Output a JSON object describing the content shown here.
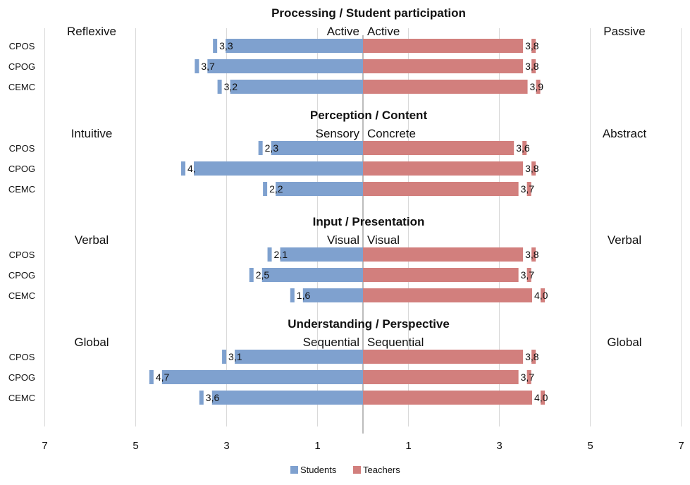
{
  "chart_data": {
    "type": "bar",
    "orientation": "horizontal-diverging",
    "x_ticks": [
      "7",
      "5",
      "3",
      "1",
      "1",
      "3",
      "5",
      "7"
    ],
    "xlim": [
      -7,
      7
    ],
    "grid": true,
    "legend_position": "bottom-center",
    "legend": [
      {
        "name": "Students",
        "color": "#7fa1cf"
      },
      {
        "name": "Teachers",
        "color": "#d27f7d"
      }
    ],
    "panels": [
      {
        "title": "Processing / Student participation",
        "left_pole": "Reflexive",
        "center_left": "Active",
        "center_right": "Active",
        "right_pole": "Passive",
        "categories": [
          "CPOS",
          "CPOG",
          "CEMC"
        ],
        "students": [
          3.3,
          3.7,
          3.2
        ],
        "teachers": [
          3.8,
          3.8,
          3.9
        ],
        "students_labels": [
          "3,3",
          "3,7",
          "3,2"
        ],
        "teachers_labels": [
          "3,8",
          "3,8",
          "3,9"
        ]
      },
      {
        "title": "Perception / Content",
        "left_pole": "Intuitive",
        "center_left": "Sensory",
        "center_right": "Concrete",
        "right_pole": "Abstract",
        "categories": [
          "CPOS",
          "CPOG",
          "CEMC"
        ],
        "students": [
          2.3,
          4.0,
          2.2
        ],
        "teachers": [
          3.6,
          3.8,
          3.7
        ],
        "students_labels": [
          "2,3",
          "4,",
          "2,2"
        ],
        "teachers_labels": [
          "3,6",
          "3,8",
          "3,7"
        ]
      },
      {
        "title": "Input / Presentation",
        "left_pole": "Verbal",
        "center_left": "Visual",
        "center_right": "Visual",
        "right_pole": "Verbal",
        "categories": [
          "CPOS",
          "CPOG",
          "CEMC"
        ],
        "students": [
          2.1,
          2.5,
          1.6
        ],
        "teachers": [
          3.8,
          3.7,
          4.0
        ],
        "students_labels": [
          "2,1",
          "2,5",
          "1,6"
        ],
        "teachers_labels": [
          "3,8",
          "3,7",
          "4,0"
        ]
      },
      {
        "title": "Understanding / Perspective",
        "left_pole": "Global",
        "center_left": "Sequential",
        "center_right": "Sequential",
        "right_pole": "Global",
        "categories": [
          "CPOS",
          "CPOG",
          "CEMC"
        ],
        "students": [
          3.1,
          4.7,
          3.6
        ],
        "teachers": [
          3.8,
          3.7,
          4.0
        ],
        "students_labels": [
          "3,1",
          "4,7",
          "3,6"
        ],
        "teachers_labels": [
          "3,8",
          "3,7",
          "4,0"
        ]
      }
    ]
  }
}
